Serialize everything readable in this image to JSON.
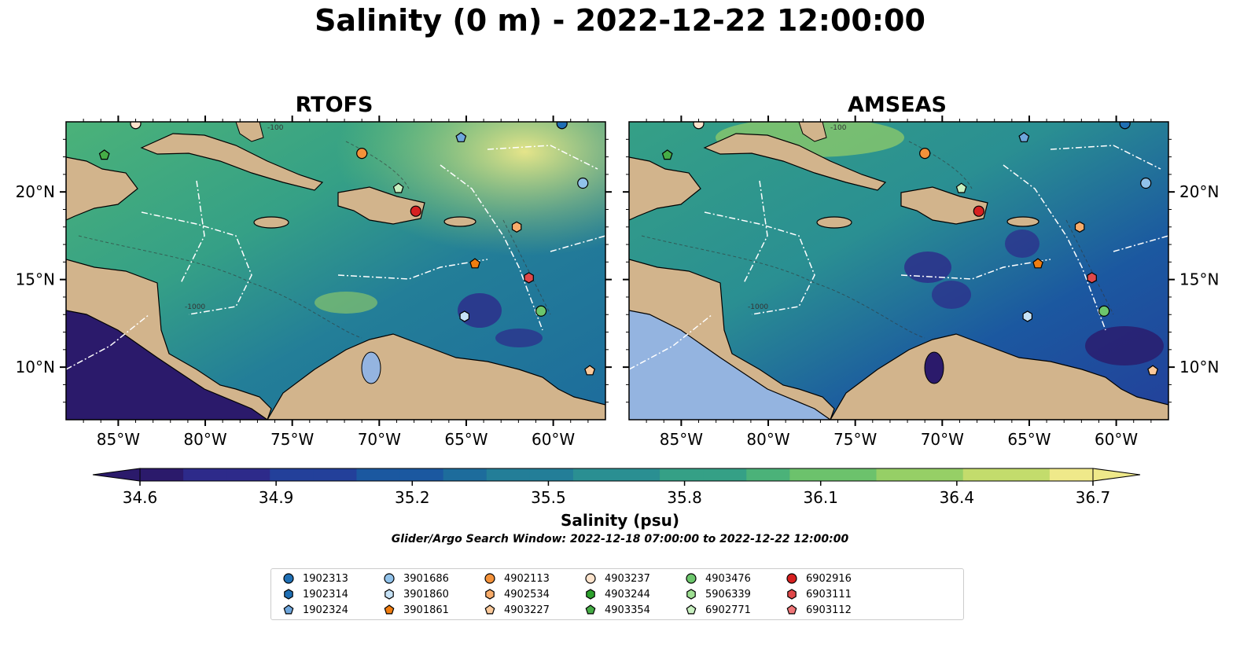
{
  "title": "Salinity (0 m) - 2022-12-22 12:00:00",
  "panels": [
    {
      "name": "RTOFS"
    },
    {
      "name": "AMSEAS"
    }
  ],
  "axes": {
    "x_ticks": [
      "85°W",
      "80°W",
      "75°W",
      "70°W",
      "65°W",
      "60°W"
    ],
    "y_ticks": [
      "20°N",
      "15°N",
      "10°N"
    ]
  },
  "map_labels": [
    "-100",
    "-1000"
  ],
  "colorbar": {
    "label": "Salinity (psu)",
    "ticks": [
      "34.6",
      "34.9",
      "35.2",
      "35.5",
      "35.8",
      "36.1",
      "36.4",
      "36.7"
    ],
    "min": 34.6,
    "max": 36.7,
    "colors": [
      "#2b1a6b",
      "#2d2a8a",
      "#23409a",
      "#1b58a0",
      "#1d6c9c",
      "#237e98",
      "#2a8f92",
      "#35a086",
      "#4bb279",
      "#6cc26c",
      "#96cf66",
      "#c3dc6c",
      "#efe98a"
    ]
  },
  "search_window": "Glider/Argo Search Window: 2022-12-18 07:00:00 to 2022-12-22 12:00:00",
  "land_color": "#d2b48c",
  "ocean_outside_color": "#94b4e0",
  "legend": [
    {
      "id": "1902313",
      "shape": "circle",
      "color": "#1f6fb4"
    },
    {
      "id": "1902314",
      "shape": "hexagon",
      "color": "#1f6fb4"
    },
    {
      "id": "1902324",
      "shape": "pentagon",
      "color": "#6ea6dc"
    },
    {
      "id": "3901686",
      "shape": "circle",
      "color": "#91c2ea"
    },
    {
      "id": "3901860",
      "shape": "hexagon",
      "color": "#c6e2f6"
    },
    {
      "id": "3901861",
      "shape": "pentagon",
      "color": "#f07d10"
    },
    {
      "id": "4902113",
      "shape": "circle",
      "color": "#f4923a"
    },
    {
      "id": "4902534",
      "shape": "hexagon",
      "color": "#f8ac6a"
    },
    {
      "id": "4903227",
      "shape": "pentagon",
      "color": "#fbc99a"
    },
    {
      "id": "4903237",
      "shape": "circle",
      "color": "#fde3cc"
    },
    {
      "id": "4903244",
      "shape": "hexagon",
      "color": "#2ca02c"
    },
    {
      "id": "4903354",
      "shape": "pentagon",
      "color": "#46ad46"
    },
    {
      "id": "4903476",
      "shape": "circle",
      "color": "#6cc66c"
    },
    {
      "id": "5906339",
      "shape": "hexagon",
      "color": "#9edf92"
    },
    {
      "id": "6902771",
      "shape": "pentagon",
      "color": "#c8f0c0"
    },
    {
      "id": "6902916",
      "shape": "circle",
      "color": "#d62020"
    },
    {
      "id": "6903111",
      "shape": "hexagon",
      "color": "#e0484a"
    },
    {
      "id": "6903112",
      "shape": "pentagon",
      "color": "#f07678"
    }
  ],
  "floats": [
    {
      "id": "1902313",
      "lon": -59.5,
      "lat": 23.9
    },
    {
      "id": "1902324",
      "lon": -65.3,
      "lat": 23.1
    },
    {
      "id": "3901686",
      "lon": -58.3,
      "lat": 20.5
    },
    {
      "id": "3901860",
      "lon": -65.1,
      "lat": 12.9
    },
    {
      "id": "3901861",
      "lon": -64.5,
      "lat": 15.9
    },
    {
      "id": "4902113",
      "lon": -71.0,
      "lat": 22.2
    },
    {
      "id": "4902534",
      "lon": -62.1,
      "lat": 18.0
    },
    {
      "id": "4903227",
      "lon": -57.9,
      "lat": 9.8
    },
    {
      "id": "4903237",
      "lon": -84.0,
      "lat": 23.9
    },
    {
      "id": "4903354",
      "lon": -85.8,
      "lat": 22.1
    },
    {
      "id": "4903476",
      "lon": -60.7,
      "lat": 13.2
    },
    {
      "id": "6902771",
      "lon": -68.9,
      "lat": 20.2
    },
    {
      "id": "6902916",
      "lon": -67.9,
      "lat": 18.9
    },
    {
      "id": "6903111",
      "lon": -61.4,
      "lat": 15.1
    }
  ]
}
